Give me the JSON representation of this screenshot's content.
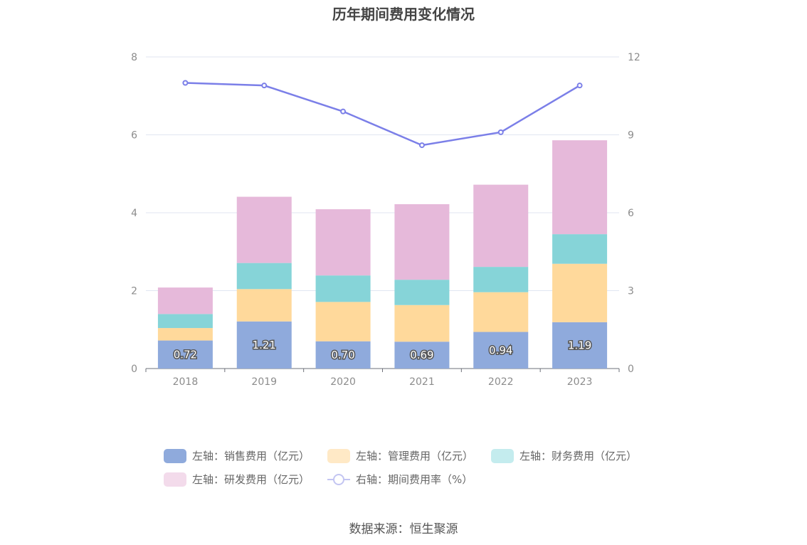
{
  "chart_data": {
    "type": "bar",
    "title": "历年期间费用变化情况",
    "categories": [
      "2018",
      "2019",
      "2020",
      "2021",
      "2022",
      "2023"
    ],
    "stacked": true,
    "y_left": {
      "ylim": [
        0,
        8
      ],
      "ticks": [
        "0",
        "2",
        "4",
        "6",
        "8"
      ]
    },
    "y_right": {
      "ylim": [
        0,
        12
      ],
      "ticks": [
        "0",
        "3",
        "6",
        "9",
        "12"
      ]
    },
    "series": [
      {
        "name": "左轴：销售费用（亿元）",
        "axis": "left",
        "type": "bar",
        "color": "#8faadc",
        "values": [
          0.72,
          1.21,
          0.7,
          0.69,
          0.94,
          1.19
        ],
        "labels": [
          "0.72",
          "1.21",
          "0.70",
          "0.69",
          "0.94",
          "1.19"
        ]
      },
      {
        "name": "左轴：管理费用（亿元）",
        "axis": "left",
        "type": "bar",
        "color": "#ffd99b",
        "values": [
          0.32,
          0.83,
          1.01,
          0.94,
          1.02,
          1.5
        ]
      },
      {
        "name": "左轴：财务费用（亿元）",
        "axis": "left",
        "type": "bar",
        "color": "#86d4d8",
        "values": [
          0.36,
          0.67,
          0.68,
          0.65,
          0.65,
          0.76
        ]
      },
      {
        "name": "左轴：研发费用（亿元）",
        "axis": "left",
        "type": "bar",
        "color": "#e6b9da",
        "values": [
          0.68,
          1.7,
          1.7,
          1.94,
          2.11,
          2.41
        ]
      },
      {
        "name": "右轴：期间费用率（%）",
        "axis": "right",
        "type": "line",
        "color": "#7b7fe8",
        "values": [
          11.0,
          10.9,
          9.9,
          8.6,
          9.1,
          10.9
        ]
      }
    ],
    "grid": true,
    "legend_position": "bottom"
  },
  "source": "数据来源：恒生聚源"
}
